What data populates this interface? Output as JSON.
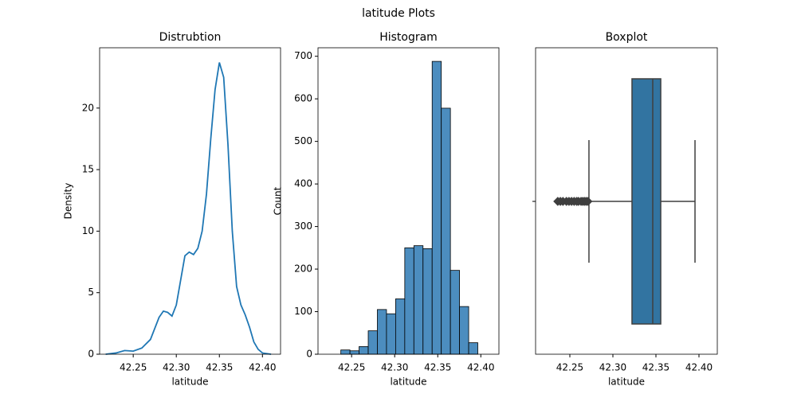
{
  "title": "latitude Plots",
  "chart_data": [
    {
      "type": "line",
      "title": "Distrubtion",
      "xlabel": "latitude",
      "ylabel": "Density",
      "color": "#1f77b4",
      "x": [
        42.218,
        42.23,
        42.24,
        42.25,
        42.26,
        42.27,
        42.28,
        42.285,
        42.29,
        42.295,
        42.3,
        42.305,
        42.31,
        42.315,
        42.32,
        42.325,
        42.33,
        42.335,
        42.34,
        42.345,
        42.35,
        42.355,
        42.36,
        42.365,
        42.37,
        42.375,
        42.38,
        42.385,
        42.39,
        42.395,
        42.4,
        42.41
      ],
      "values": [
        0,
        0.1,
        0.3,
        0.25,
        0.5,
        1.2,
        3.0,
        3.5,
        3.4,
        3.1,
        4.0,
        6.0,
        8.0,
        8.3,
        8.1,
        8.6,
        10,
        13,
        17.5,
        21.5,
        23.7,
        22.5,
        17,
        10,
        5.5,
        4.0,
        3.2,
        2.2,
        1.0,
        0.4,
        0.1,
        0
      ],
      "xlim": [
        42.211,
        42.421
      ],
      "ylim": [
        0,
        24.9
      ],
      "xticks": [
        42.25,
        {
          "value": 42.3,
          "label": "42.30"
        },
        42.35,
        {
          "value": 42.4,
          "label": "42.40"
        }
      ],
      "yticks": [
        0,
        5,
        10,
        15,
        20
      ]
    },
    {
      "type": "histogram",
      "title": "Histogram",
      "xlabel": "latitude",
      "ylabel": "Count",
      "color": "#4c8dbf",
      "bins": [
        42.2375,
        42.2481,
        42.2587,
        42.2693,
        42.2799,
        42.2905,
        42.3011,
        42.3117,
        42.3223,
        42.3329,
        42.3435,
        42.3541,
        42.3647,
        42.3753,
        42.3859,
        42.3965
      ],
      "values": [
        10,
        8,
        18,
        55,
        105,
        95,
        130,
        250,
        255,
        248,
        688,
        578,
        197,
        112,
        27
      ],
      "xlim": [
        42.211,
        42.421
      ],
      "ylim": [
        0,
        720
      ],
      "xticks": [
        42.25,
        {
          "value": 42.3,
          "label": "42.30"
        },
        42.35,
        {
          "value": 42.4,
          "label": "42.40"
        }
      ],
      "yticks": [
        0,
        100,
        200,
        300,
        400,
        500,
        600,
        700
      ]
    },
    {
      "type": "box",
      "title": "Boxplot",
      "xlabel": "latitude",
      "color": "#3274a1",
      "stats": {
        "whislo": 42.2722,
        "q1": 42.3222,
        "med": 42.3463,
        "q3": 42.3556,
        "whishi": 42.3954
      },
      "fliers": [
        42.236,
        42.239,
        42.242,
        42.246,
        42.249,
        42.252,
        42.255,
        42.258,
        42.26,
        42.263,
        42.265,
        42.267,
        42.269,
        42.271
      ],
      "xlim": [
        42.2102,
        42.4213
      ],
      "xticks": [
        42.25,
        {
          "value": 42.3,
          "label": "42.30"
        },
        42.35,
        {
          "value": 42.4,
          "label": "42.40"
        }
      ]
    }
  ]
}
